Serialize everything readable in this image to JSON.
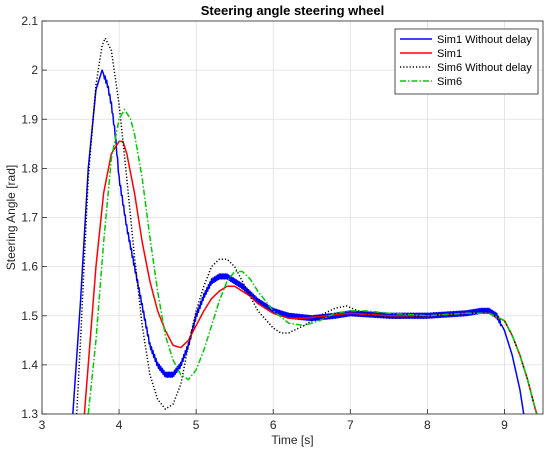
{
  "chart_data": {
    "type": "line",
    "title": "Steering angle steering wheel",
    "xlabel": "Time [s]",
    "ylabel": "Steering Angle [rad]",
    "xlim": [
      3,
      9.5
    ],
    "ylim": [
      1.3,
      2.1
    ],
    "xticks": [
      3,
      4,
      5,
      6,
      7,
      8,
      9
    ],
    "yticks": [
      1.3,
      1.4,
      1.5,
      1.6,
      1.7,
      1.8,
      1.9,
      2.0,
      2.1
    ],
    "xtick_labels": [
      "3",
      "4",
      "5",
      "6",
      "7",
      "8",
      "9"
    ],
    "ytick_labels": [
      "1.3",
      "1.4",
      "1.5",
      "1.6",
      "1.7",
      "1.8",
      "1.9",
      "2",
      "2.1"
    ],
    "grid": true,
    "legend_position": "top-right",
    "series": [
      {
        "name": "Sim1 Without delay",
        "color": "#0000ff",
        "dash": "solid",
        "jitter": true,
        "points": [
          [
            3.4,
            1.3
          ],
          [
            3.5,
            1.53
          ],
          [
            3.6,
            1.8
          ],
          [
            3.7,
            1.96
          ],
          [
            3.78,
            2.0
          ],
          [
            3.85,
            1.97
          ],
          [
            3.9,
            1.93
          ],
          [
            3.95,
            1.87
          ],
          [
            4.0,
            1.78
          ],
          [
            4.1,
            1.68
          ],
          [
            4.2,
            1.6
          ],
          [
            4.3,
            1.52
          ],
          [
            4.4,
            1.44
          ],
          [
            4.5,
            1.4
          ],
          [
            4.6,
            1.38
          ],
          [
            4.7,
            1.38
          ],
          [
            4.8,
            1.4
          ],
          [
            4.9,
            1.44
          ],
          [
            5.0,
            1.5
          ],
          [
            5.1,
            1.54
          ],
          [
            5.2,
            1.57
          ],
          [
            5.3,
            1.58
          ],
          [
            5.4,
            1.58
          ],
          [
            5.5,
            1.57
          ],
          [
            5.6,
            1.56
          ],
          [
            5.8,
            1.53
          ],
          [
            6.0,
            1.51
          ],
          [
            6.2,
            1.5
          ],
          [
            6.5,
            1.495
          ],
          [
            6.8,
            1.5
          ],
          [
            7.0,
            1.505
          ],
          [
            7.5,
            1.5
          ],
          [
            8.0,
            1.5
          ],
          [
            8.5,
            1.505
          ],
          [
            8.7,
            1.51
          ],
          [
            8.8,
            1.51
          ],
          [
            8.9,
            1.5
          ],
          [
            9.0,
            1.47
          ],
          [
            9.1,
            1.42
          ],
          [
            9.2,
            1.35
          ],
          [
            9.25,
            1.3
          ]
        ]
      },
      {
        "name": "Sim1",
        "color": "#ff0000",
        "dash": "solid",
        "jitter": false,
        "points": [
          [
            3.55,
            1.3
          ],
          [
            3.6,
            1.4
          ],
          [
            3.7,
            1.6
          ],
          [
            3.8,
            1.75
          ],
          [
            3.9,
            1.83
          ],
          [
            4.0,
            1.855
          ],
          [
            4.05,
            1.855
          ],
          [
            4.1,
            1.83
          ],
          [
            4.2,
            1.75
          ],
          [
            4.3,
            1.65
          ],
          [
            4.4,
            1.57
          ],
          [
            4.5,
            1.51
          ],
          [
            4.6,
            1.47
          ],
          [
            4.7,
            1.44
          ],
          [
            4.8,
            1.435
          ],
          [
            4.9,
            1.45
          ],
          [
            5.0,
            1.48
          ],
          [
            5.1,
            1.51
          ],
          [
            5.2,
            1.535
          ],
          [
            5.3,
            1.55
          ],
          [
            5.4,
            1.56
          ],
          [
            5.5,
            1.56
          ],
          [
            5.6,
            1.55
          ],
          [
            5.7,
            1.54
          ],
          [
            5.8,
            1.525
          ],
          [
            6.0,
            1.505
          ],
          [
            6.2,
            1.495
          ],
          [
            6.4,
            1.495
          ],
          [
            6.7,
            1.5
          ],
          [
            7.0,
            1.505
          ],
          [
            7.5,
            1.5
          ],
          [
            8.0,
            1.5
          ],
          [
            8.5,
            1.505
          ],
          [
            8.8,
            1.505
          ],
          [
            9.0,
            1.49
          ],
          [
            9.1,
            1.46
          ],
          [
            9.2,
            1.42
          ],
          [
            9.3,
            1.37
          ],
          [
            9.4,
            1.31
          ],
          [
            9.42,
            1.3
          ]
        ]
      },
      {
        "name": "Sim6 Without delay",
        "color": "#000000",
        "dash": "dotted",
        "jitter": false,
        "points": [
          [
            3.45,
            1.3
          ],
          [
            3.5,
            1.45
          ],
          [
            3.6,
            1.78
          ],
          [
            3.7,
            1.97
          ],
          [
            3.78,
            2.05
          ],
          [
            3.82,
            2.065
          ],
          [
            3.9,
            2.04
          ],
          [
            4.0,
            1.93
          ],
          [
            4.1,
            1.78
          ],
          [
            4.2,
            1.62
          ],
          [
            4.3,
            1.48
          ],
          [
            4.4,
            1.38
          ],
          [
            4.5,
            1.33
          ],
          [
            4.6,
            1.31
          ],
          [
            4.7,
            1.32
          ],
          [
            4.8,
            1.36
          ],
          [
            4.9,
            1.44
          ],
          [
            5.0,
            1.51
          ],
          [
            5.1,
            1.56
          ],
          [
            5.2,
            1.6
          ],
          [
            5.3,
            1.615
          ],
          [
            5.4,
            1.615
          ],
          [
            5.5,
            1.6
          ],
          [
            5.6,
            1.57
          ],
          [
            5.8,
            1.51
          ],
          [
            6.0,
            1.475
          ],
          [
            6.1,
            1.465
          ],
          [
            6.2,
            1.465
          ],
          [
            6.4,
            1.48
          ],
          [
            6.6,
            1.5
          ],
          [
            6.8,
            1.515
          ],
          [
            6.95,
            1.52
          ],
          [
            7.1,
            1.51
          ],
          [
            7.3,
            1.5
          ],
          [
            7.6,
            1.495
          ],
          [
            8.0,
            1.5
          ],
          [
            8.5,
            1.505
          ],
          [
            8.8,
            1.505
          ],
          [
            9.0,
            1.49
          ],
          [
            9.1,
            1.46
          ],
          [
            9.2,
            1.42
          ],
          [
            9.3,
            1.37
          ],
          [
            9.4,
            1.31
          ],
          [
            9.42,
            1.3
          ]
        ]
      },
      {
        "name": "Sim6",
        "color": "#00cc00",
        "dash": "dashdot",
        "jitter": false,
        "points": [
          [
            3.6,
            1.3
          ],
          [
            3.7,
            1.45
          ],
          [
            3.8,
            1.65
          ],
          [
            3.9,
            1.82
          ],
          [
            4.0,
            1.9
          ],
          [
            4.07,
            1.92
          ],
          [
            4.15,
            1.9
          ],
          [
            4.2,
            1.87
          ],
          [
            4.3,
            1.78
          ],
          [
            4.4,
            1.66
          ],
          [
            4.5,
            1.55
          ],
          [
            4.6,
            1.46
          ],
          [
            4.7,
            1.41
          ],
          [
            4.8,
            1.38
          ],
          [
            4.9,
            1.37
          ],
          [
            5.0,
            1.39
          ],
          [
            5.1,
            1.43
          ],
          [
            5.2,
            1.48
          ],
          [
            5.3,
            1.53
          ],
          [
            5.4,
            1.57
          ],
          [
            5.5,
            1.59
          ],
          [
            5.6,
            1.59
          ],
          [
            5.7,
            1.575
          ],
          [
            5.8,
            1.55
          ],
          [
            6.0,
            1.51
          ],
          [
            6.2,
            1.485
          ],
          [
            6.4,
            1.48
          ],
          [
            6.6,
            1.49
          ],
          [
            6.8,
            1.505
          ],
          [
            7.0,
            1.51
          ],
          [
            7.2,
            1.51
          ],
          [
            7.5,
            1.505
          ],
          [
            8.0,
            1.5
          ],
          [
            8.5,
            1.505
          ],
          [
            8.8,
            1.505
          ],
          [
            9.0,
            1.49
          ],
          [
            9.1,
            1.46
          ],
          [
            9.2,
            1.42
          ],
          [
            9.3,
            1.37
          ],
          [
            9.4,
            1.31
          ],
          [
            9.42,
            1.3
          ]
        ]
      }
    ]
  }
}
